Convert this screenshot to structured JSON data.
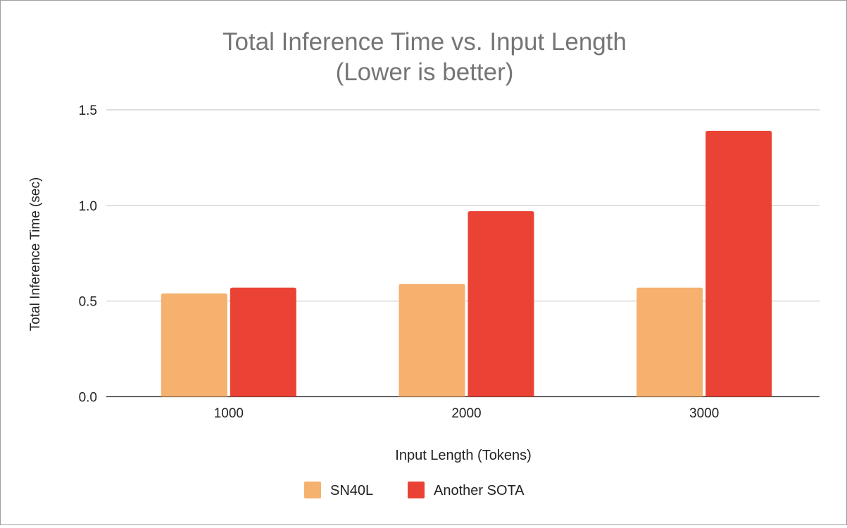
{
  "chart_data": {
    "type": "bar",
    "title": "Total Inference Time vs. Input Length",
    "subtitle": "(Lower is better)",
    "xlabel": "Input Length (Tokens)",
    "ylabel": "Total Inference Time (sec)",
    "categories": [
      "1000",
      "2000",
      "3000"
    ],
    "series": [
      {
        "name": "SN40L",
        "color": "#f5b16d",
        "values": [
          0.54,
          0.59,
          0.57
        ]
      },
      {
        "name": "Another SOTA",
        "color": "#ea4335",
        "values": [
          0.57,
          0.97,
          1.39
        ]
      }
    ],
    "ylim": [
      0,
      1.5
    ],
    "yticks": [
      "0.0",
      "0.5",
      "1.0",
      "1.5"
    ],
    "grid": true,
    "legend": "bottom"
  }
}
